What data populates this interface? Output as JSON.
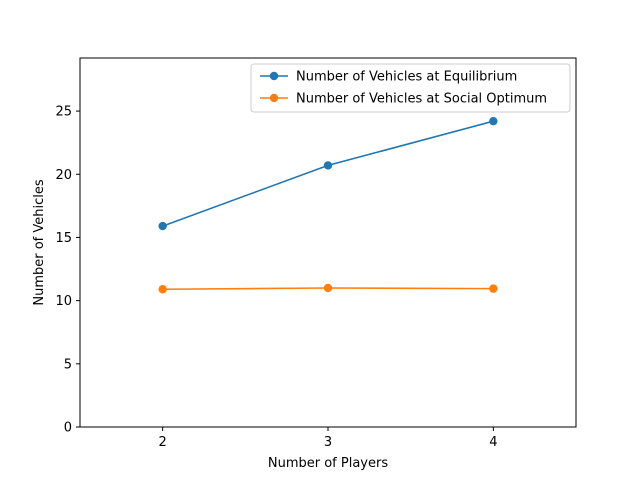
{
  "chart_data": {
    "type": "line",
    "title": "",
    "xlabel": "Number of Players",
    "ylabel": "Number of Vehicles",
    "x": [
      2,
      3,
      4
    ],
    "xticks": [
      "2",
      "3",
      "4"
    ],
    "xlim": [
      1.5,
      4.5
    ],
    "yticks": [
      "0",
      "5",
      "10",
      "15",
      "20",
      "25"
    ],
    "ylim": [
      0,
      29.2
    ],
    "grid": false,
    "legend_position": "top-right",
    "series": [
      {
        "name": "Number of Vehicles at Equilibrium",
        "values": [
          15.9,
          20.7,
          24.2
        ],
        "color": "#1f77b4",
        "marker": "circle"
      },
      {
        "name": "Number of Vehicles at Social Optimum",
        "values": [
          10.9,
          11.0,
          10.95
        ],
        "color": "#ff7f0e",
        "marker": "circle"
      }
    ]
  }
}
